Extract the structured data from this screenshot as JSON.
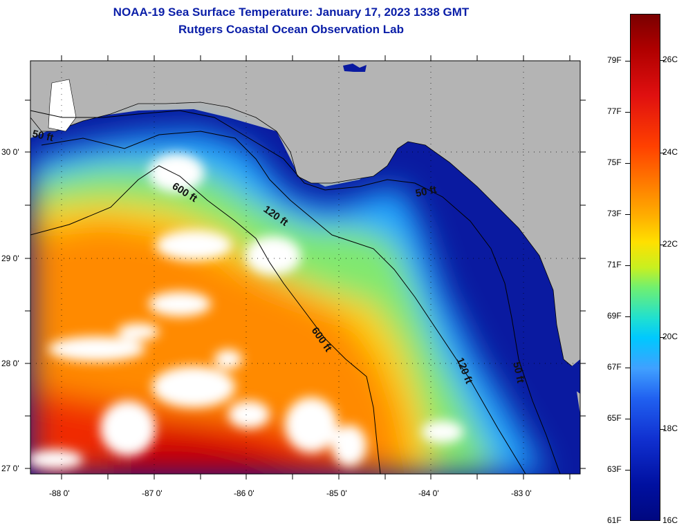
{
  "title": {
    "line1": "NOAA-19 Sea Surface Temperature:  January 17, 2023 1338 GMT",
    "line2": "Rutgers Coastal Ocean Observation Lab"
  },
  "axes": {
    "lat_labels": [
      "30 0'",
      "29 0'",
      "28 0'",
      "27 0'"
    ],
    "lon_labels": [
      "-88 0'",
      "-87 0'",
      "-86 0'",
      "-85 0'",
      "-84 0'",
      "-83 0'"
    ]
  },
  "contours": {
    "c50a": "50 ft",
    "c600a": "600 ft",
    "c120a": "120 ft",
    "c50b": "50 ft",
    "c600b": "600 ft",
    "c120b": "120 ft",
    "c50c": "50 ft"
  },
  "colorbar": {
    "fahrenheit": [
      "79F",
      "77F",
      "75F",
      "73F",
      "71F",
      "69F",
      "67F",
      "65F",
      "63F",
      "61F"
    ],
    "celsius": [
      "26C",
      "24C",
      "22C",
      "20C",
      "18C",
      "16C"
    ],
    "colors": {
      "max": "#7a0000",
      "warm": "#e01010",
      "mid": "#ffe000",
      "cool": "#00c8ff",
      "min": "#000880"
    }
  },
  "land_color": "#b4b4b4",
  "cloud_color": "#ffffff"
}
